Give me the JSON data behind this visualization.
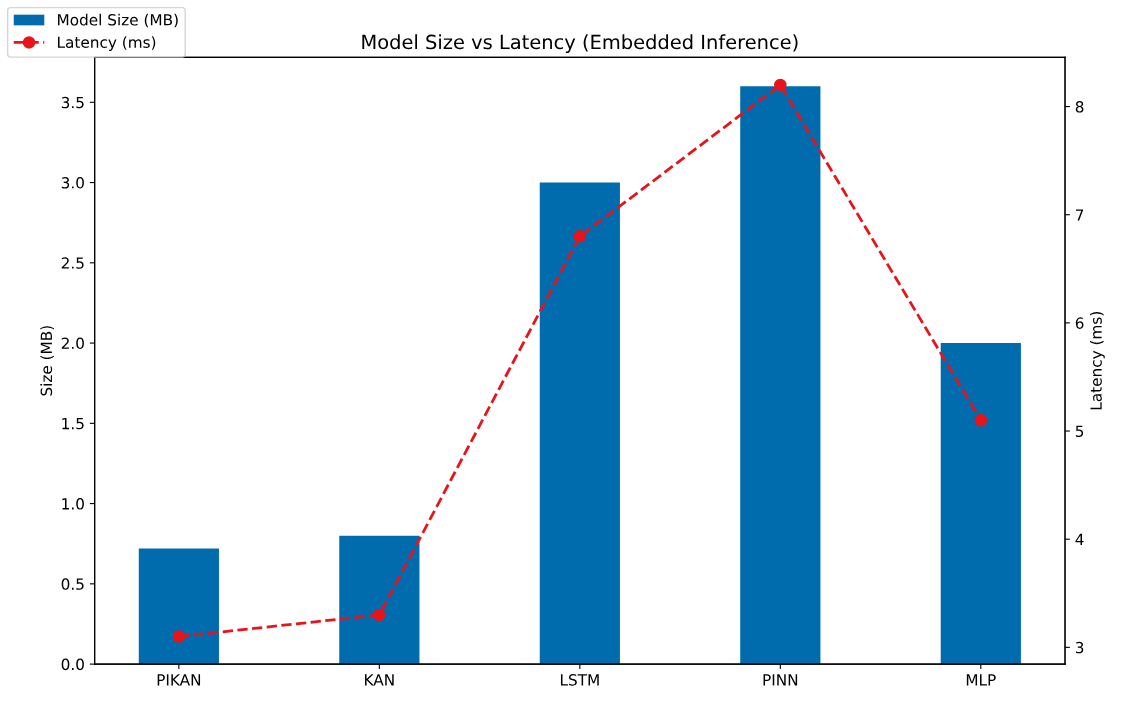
{
  "chart_data": {
    "type": "bar",
    "title": "Model Size vs Latency (Embedded Inference)",
    "categories": [
      "PIKAN",
      "KAN",
      "LSTM",
      "PINN",
      "MLP"
    ],
    "ylabel": "Size (MB)",
    "y2label": "Latency (ms)",
    "series": [
      {
        "name": "Model Size (MB)",
        "color": "#006bad",
        "values": [
          0.72,
          0.8,
          3.0,
          3.6,
          2.0
        ]
      },
      {
        "name": "Latency (ms)",
        "type": "line",
        "axis": "y2",
        "color": "#e8141c",
        "marker": "circle",
        "line_style": "dashed",
        "values": [
          3.1,
          3.3,
          6.8,
          8.2,
          5.1
        ]
      }
    ],
    "ylim": [
      0,
      3.78
    ],
    "yticks": [
      {
        "value": 0,
        "label": "0.0"
      },
      {
        "value": 0.5,
        "label": "0.5"
      },
      {
        "value": 1,
        "label": "1.0"
      },
      {
        "value": 1.5,
        "label": "1.5"
      },
      {
        "value": 2,
        "label": "2.0"
      },
      {
        "value": 2.5,
        "label": "2.5"
      },
      {
        "value": 3,
        "label": "3.0"
      },
      {
        "value": 3.5,
        "label": "3.5"
      }
    ],
    "y2lim": [
      2.845,
      8.455
    ],
    "y2ticks": [
      3,
      4,
      5,
      6,
      7,
      8
    ],
    "legend": "top left",
    "grid": false
  }
}
